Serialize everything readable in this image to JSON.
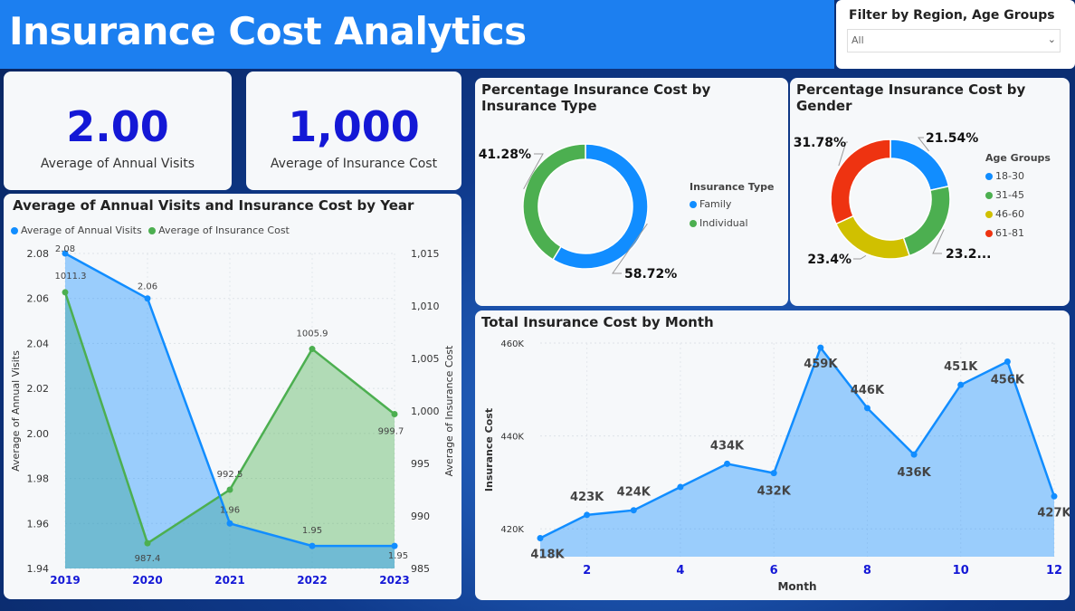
{
  "header": {
    "title": "Insurance Cost Analytics"
  },
  "filter": {
    "title": "Filter by Region, Age Groups",
    "value": "All"
  },
  "kpis": [
    {
      "value": "2.00",
      "label": "Average of Annual Visits"
    },
    {
      "value": "1,000",
      "label": "Average of Insurance Cost"
    }
  ],
  "colors": {
    "blue": "#118dff",
    "green": "#4caf50",
    "olive": "#d0c000",
    "red": "#ee3311",
    "kpi": "#1418d6"
  },
  "chart_data": [
    {
      "type": "line",
      "title": "Average of Annual Visits and Insurance Cost by Year",
      "categories": [
        "2019",
        "2020",
        "2021",
        "2022",
        "2023"
      ],
      "series": [
        {
          "name": "Average of Annual Visits",
          "axis": "left",
          "values": [
            2.08,
            2.06,
            1.96,
            1.95,
            1.95
          ]
        },
        {
          "name": "Average of Insurance Cost",
          "axis": "right",
          "values": [
            1011.3,
            987.4,
            992.5,
            1005.9,
            999.7
          ]
        }
      ],
      "ylabel": "Average of Annual Visits",
      "y2label": "Average of Insurance Cost",
      "ylim": [
        1.94,
        2.08
      ],
      "y2lim": [
        985,
        1015
      ],
      "yticks": [
        "2.08",
        "2.06",
        "2.04",
        "2.02",
        "2.00",
        "1.98",
        "1.96",
        "1.94"
      ],
      "y2ticks": [
        "1,015",
        "1,010",
        "1,005",
        "1,000",
        "995",
        "990",
        "985"
      ],
      "labels1": [
        "2.08",
        "2.06",
        "1.96",
        "1.95",
        "1.95"
      ],
      "labels2": [
        "1011.3",
        "987.4",
        "992.5",
        "1005.9",
        "999.7"
      ],
      "legend": "top-left"
    },
    {
      "type": "pie",
      "title": "Percentage Insurance Cost by Insurance Type",
      "legend_title": "Insurance Type",
      "slices": [
        {
          "name": "Family",
          "value": 58.72,
          "label": "58.72%"
        },
        {
          "name": "Individual",
          "value": 41.28,
          "label": "41.28%"
        }
      ],
      "legend": "right"
    },
    {
      "type": "pie",
      "title": "Percentage Insurance Cost by Gender",
      "legend_title": "Age Groups",
      "slices": [
        {
          "name": "18-30",
          "value": 21.54,
          "label": "21.54%"
        },
        {
          "name": "31-45",
          "value": 23.28,
          "label": "23.2..."
        },
        {
          "name": "46-60",
          "value": 23.4,
          "label": "23.4%"
        },
        {
          "name": "61-81",
          "value": 31.78,
          "label": "31.78%"
        }
      ],
      "legend": "right"
    },
    {
      "type": "area",
      "title": "Total Insurance Cost by Month",
      "x": [
        1,
        2,
        3,
        4,
        5,
        6,
        7,
        8,
        9,
        10,
        11,
        12
      ],
      "values": [
        418,
        423,
        424,
        429,
        434,
        432,
        459,
        446,
        436,
        451,
        456,
        427
      ],
      "point_labels": [
        "418K",
        "423K",
        "424K",
        null,
        "434K",
        "432K",
        "459K",
        "446K",
        "436K",
        "451K",
        "456K",
        "427K"
      ],
      "xticks": [
        "2",
        "4",
        "6",
        "8",
        "10",
        "12"
      ],
      "yticks": [
        "460K",
        "440K",
        "420K"
      ],
      "xlabel": "Month",
      "ylabel": "Insurance Cost",
      "ylim": [
        414,
        460
      ]
    }
  ]
}
